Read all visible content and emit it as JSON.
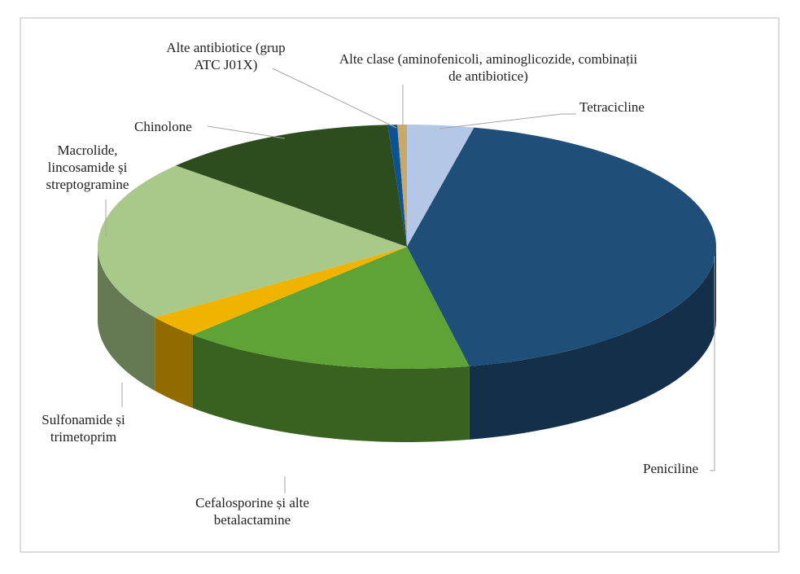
{
  "chart_data": {
    "type": "pie",
    "categories": [
      "Tetracicline",
      "Peniciline",
      "Cefalosporine și alte betalactamine",
      "Sulfonamide și trimetoprim",
      "Macrolide, lincosamide și streptogramine",
      "Chinolone",
      "Alte antibiotice (grup ATC J01X)",
      "Alte clase (aminofenicoli, aminoglicozide, combinații de antibiotice)"
    ],
    "values": [
      3.5,
      43.5,
      15.5,
      3,
      21.5,
      12.5,
      0.5,
      0.5
    ],
    "colors": [
      "#b4c7e7",
      "#1f4e79",
      "#5fa337",
      "#f0b400",
      "#a9c98a",
      "#2d4d1e",
      "#0b5394",
      "#c9a86a"
    ]
  }
}
